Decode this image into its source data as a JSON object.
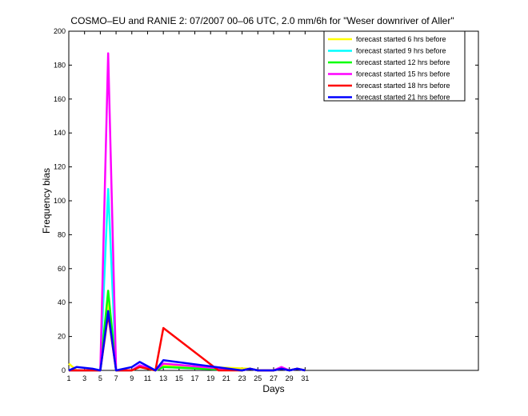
{
  "chart_data": {
    "type": "line",
    "title": "COSMO–EU and RANIE 2: 07/2007 00–06 UTC, 2.0 mm/6h for \"Weser downriver of Aller\"",
    "xlabel": "Days",
    "ylabel": "Frequency bias",
    "xlim": [
      1,
      53
    ],
    "ylim": [
      0,
      200
    ],
    "x_ticks": [
      1,
      3,
      5,
      7,
      9,
      11,
      13,
      15,
      17,
      19,
      21,
      23,
      25,
      27,
      29,
      31
    ],
    "y_ticks": [
      0,
      20,
      40,
      60,
      80,
      100,
      120,
      140,
      160,
      180,
      200
    ],
    "legend_position": "top-right",
    "grid": false,
    "series": [
      {
        "name": "forecast started 6 hrs before",
        "color": "#ffff00",
        "points": [
          [
            1,
            4
          ],
          [
            2,
            0
          ],
          [
            5,
            0
          ],
          [
            6,
            40
          ],
          [
            7,
            0
          ],
          [
            9,
            0
          ],
          [
            10,
            2
          ],
          [
            12,
            0
          ],
          [
            13,
            3
          ],
          [
            24,
            1
          ],
          [
            25,
            0
          ],
          [
            27,
            0
          ],
          [
            28,
            1
          ],
          [
            29,
            0
          ],
          [
            30,
            1
          ],
          [
            31,
            0
          ]
        ]
      },
      {
        "name": "forecast started 9 hrs before",
        "color": "#00ffff",
        "points": [
          [
            1,
            0
          ],
          [
            5,
            0
          ],
          [
            6,
            107
          ],
          [
            7,
            0
          ],
          [
            9,
            0
          ],
          [
            10,
            3
          ],
          [
            12,
            0
          ],
          [
            13,
            2
          ],
          [
            23,
            0
          ],
          [
            24,
            1
          ],
          [
            25,
            0
          ],
          [
            27,
            0
          ],
          [
            28,
            1
          ],
          [
            29,
            0
          ],
          [
            30,
            1
          ],
          [
            31,
            0
          ]
        ]
      },
      {
        "name": "forecast started 12 hrs before",
        "color": "#00ff00",
        "points": [
          [
            1,
            0
          ],
          [
            5,
            0
          ],
          [
            6,
            47
          ],
          [
            7,
            0
          ],
          [
            9,
            0
          ],
          [
            10,
            2
          ],
          [
            12,
            0
          ],
          [
            13,
            2
          ],
          [
            23,
            0
          ],
          [
            24,
            1
          ],
          [
            25,
            0
          ],
          [
            27,
            0
          ],
          [
            28,
            1
          ],
          [
            29,
            0
          ],
          [
            30,
            1
          ],
          [
            31,
            0
          ]
        ]
      },
      {
        "name": "forecast started 15 hrs before",
        "color": "#ff00ff",
        "points": [
          [
            1,
            0
          ],
          [
            5,
            0
          ],
          [
            6,
            187
          ],
          [
            7,
            0
          ],
          [
            9,
            0
          ],
          [
            10,
            3
          ],
          [
            12,
            0
          ],
          [
            13,
            4
          ],
          [
            23,
            0
          ],
          [
            24,
            1
          ],
          [
            25,
            0
          ],
          [
            27,
            0
          ],
          [
            28,
            2
          ],
          [
            29,
            0
          ],
          [
            30,
            1
          ],
          [
            31,
            0
          ]
        ]
      },
      {
        "name": "forecast started 18 hrs before",
        "color": "#ff0000",
        "points": [
          [
            1,
            0
          ],
          [
            5,
            0
          ],
          [
            6,
            33
          ],
          [
            7,
            0
          ],
          [
            9,
            0
          ],
          [
            10,
            2
          ],
          [
            12,
            0
          ],
          [
            13,
            25
          ],
          [
            20,
            0
          ],
          [
            23,
            0
          ],
          [
            24,
            1
          ],
          [
            25,
            0
          ],
          [
            27,
            0
          ],
          [
            28,
            1
          ],
          [
            29,
            0
          ],
          [
            30,
            1
          ],
          [
            31,
            0
          ]
        ]
      },
      {
        "name": "forecast started 21 hrs before",
        "color": "#0000ff",
        "points": [
          [
            1,
            0
          ],
          [
            2,
            2
          ],
          [
            4,
            1
          ],
          [
            5,
            0
          ],
          [
            6,
            35
          ],
          [
            7,
            0
          ],
          [
            9,
            2
          ],
          [
            10,
            5
          ],
          [
            12,
            0
          ],
          [
            13,
            6
          ],
          [
            23,
            0
          ],
          [
            24,
            1
          ],
          [
            25,
            0
          ],
          [
            27,
            0
          ],
          [
            28,
            1
          ],
          [
            29,
            0
          ],
          [
            30,
            1
          ],
          [
            31,
            0
          ]
        ]
      }
    ]
  }
}
